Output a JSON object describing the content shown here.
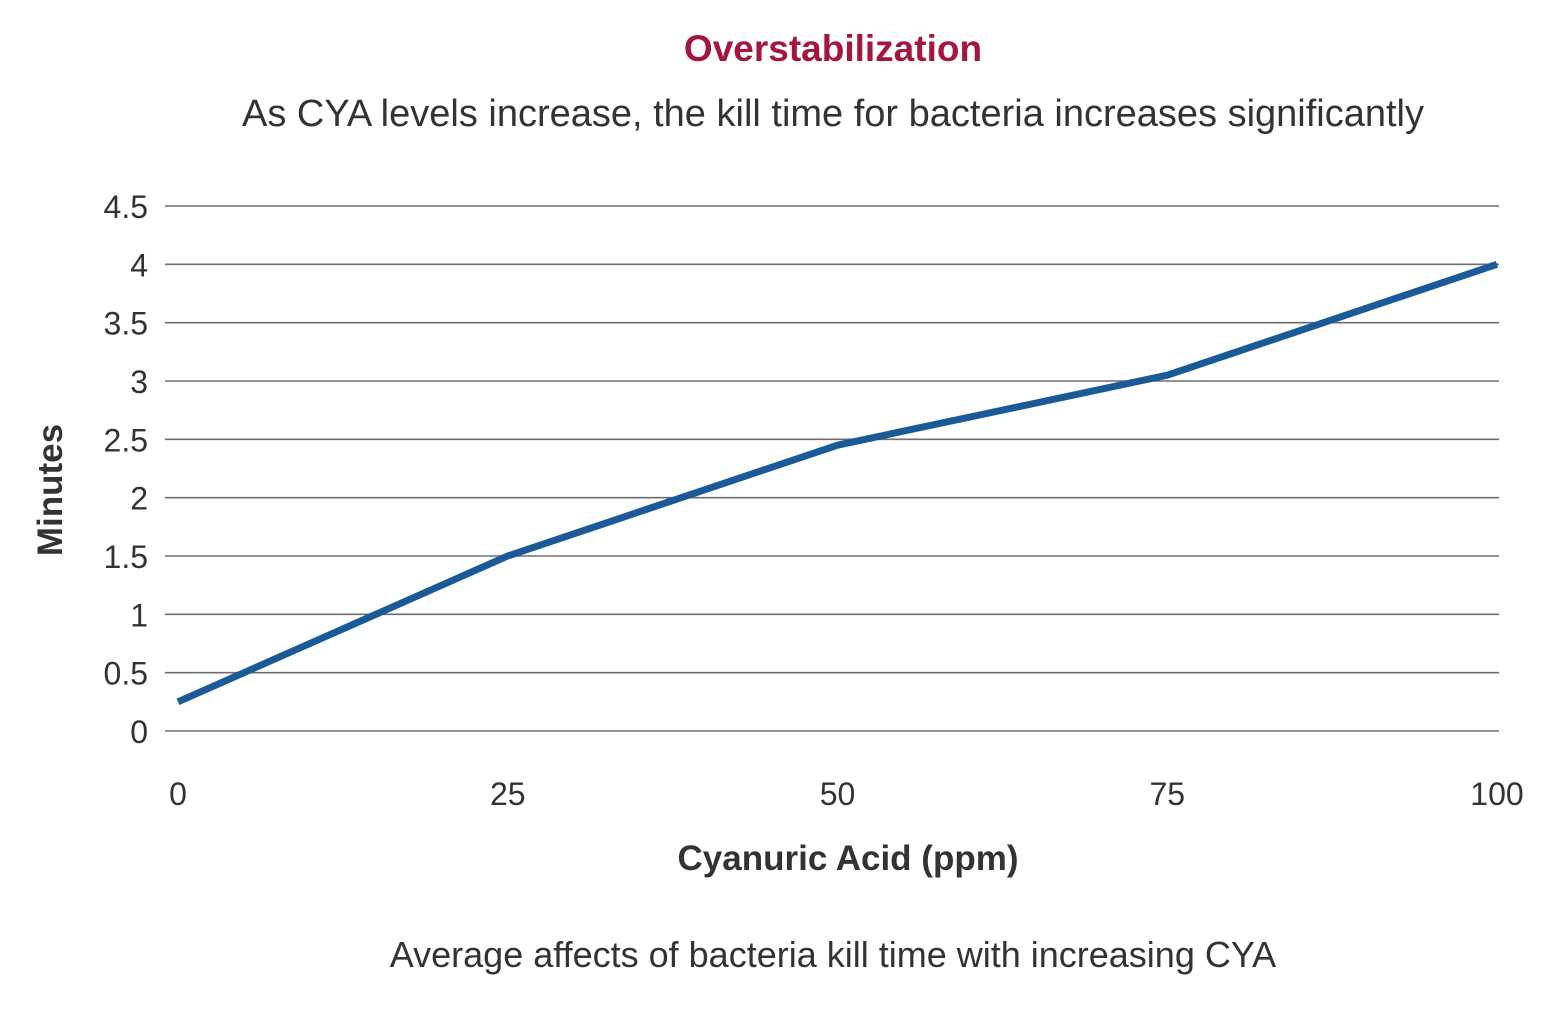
{
  "chart_data": {
    "type": "line",
    "title": "Overstabilization",
    "subtitle": "As CYA levels increase, the kill time for bacteria increases significantly",
    "xlabel": "Cyanuric Acid (ppm)",
    "ylabel": "Minutes",
    "caption": "Average affects of bacteria kill time with increasing CYA",
    "x": [
      0,
      25,
      50,
      75,
      100
    ],
    "series": [
      {
        "values": [
          0.25,
          1.5,
          2.45,
          3.05,
          4.0
        ],
        "color": "#1a5a96"
      }
    ],
    "xticks": [
      "0",
      "25",
      "50",
      "75",
      "100"
    ],
    "yticks": [
      "0",
      "0.5",
      "1",
      "1.5",
      "2",
      "2.5",
      "3",
      "3.5",
      "4",
      "4.5"
    ],
    "xlim": [
      0,
      100
    ],
    "ylim": [
      0,
      4.5
    ],
    "grid": "horizontal",
    "legend": "none",
    "title_color": "#a3173f"
  }
}
